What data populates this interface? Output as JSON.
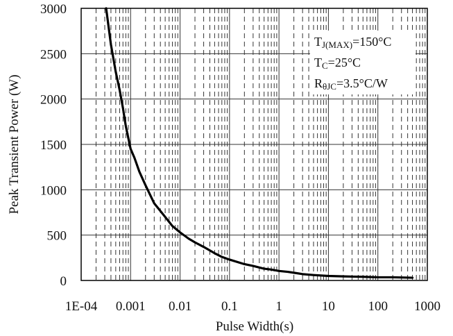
{
  "chart_data": {
    "type": "line",
    "title": "",
    "xlabel": "Pulse Width(s)",
    "ylabel": "Peak Transient Power  (W)",
    "x_scale": "log",
    "xlim": [
      0.0001,
      1000
    ],
    "ylim": [
      0,
      3000
    ],
    "x_ticks": [
      0.0001,
      0.001,
      0.01,
      0.1,
      1,
      10,
      100,
      1000
    ],
    "x_tick_labels": [
      "1E-04",
      "0.001",
      "0.01",
      "0.1",
      "1",
      "10",
      "100",
      "1000"
    ],
    "y_ticks": [
      0,
      500,
      1000,
      1500,
      2000,
      2500,
      3000
    ],
    "y_tick_labels": [
      "0",
      "500",
      "1000",
      "1500",
      "2000",
      "2500",
      "3000"
    ],
    "grid": {
      "major_y": true,
      "major_x": true,
      "minor_x": "dashed"
    },
    "series": [
      {
        "color": "#000000",
        "x": [
          0.00032,
          0.0004,
          0.0005,
          0.0006,
          0.0007,
          0.0008,
          0.001,
          0.0012,
          0.0015,
          0.002,
          0.003,
          0.005,
          0.007,
          0.01,
          0.015,
          0.02,
          0.03,
          0.05,
          0.07,
          0.1,
          0.2,
          0.3,
          0.5,
          0.7,
          1,
          1.5,
          2,
          3,
          5,
          10,
          20,
          50,
          100,
          200,
          500
        ],
        "y": [
          3000,
          2600,
          2300,
          2100,
          1900,
          1700,
          1450,
          1350,
          1200,
          1050,
          850,
          700,
          600,
          530,
          460,
          420,
          370,
          300,
          260,
          230,
          180,
          160,
          130,
          120,
          105,
          95,
          85,
          70,
          60,
          50,
          45,
          40,
          35,
          35,
          30
        ]
      }
    ],
    "annotations": [
      {
        "main": "T",
        "sub": "J(MAX)",
        "rest": "=150°C"
      },
      {
        "main": "T",
        "sub": "C",
        "rest": "=25°C"
      },
      {
        "main": "R",
        "sub": "θJC",
        "rest": "=3.5°C/W"
      }
    ]
  }
}
